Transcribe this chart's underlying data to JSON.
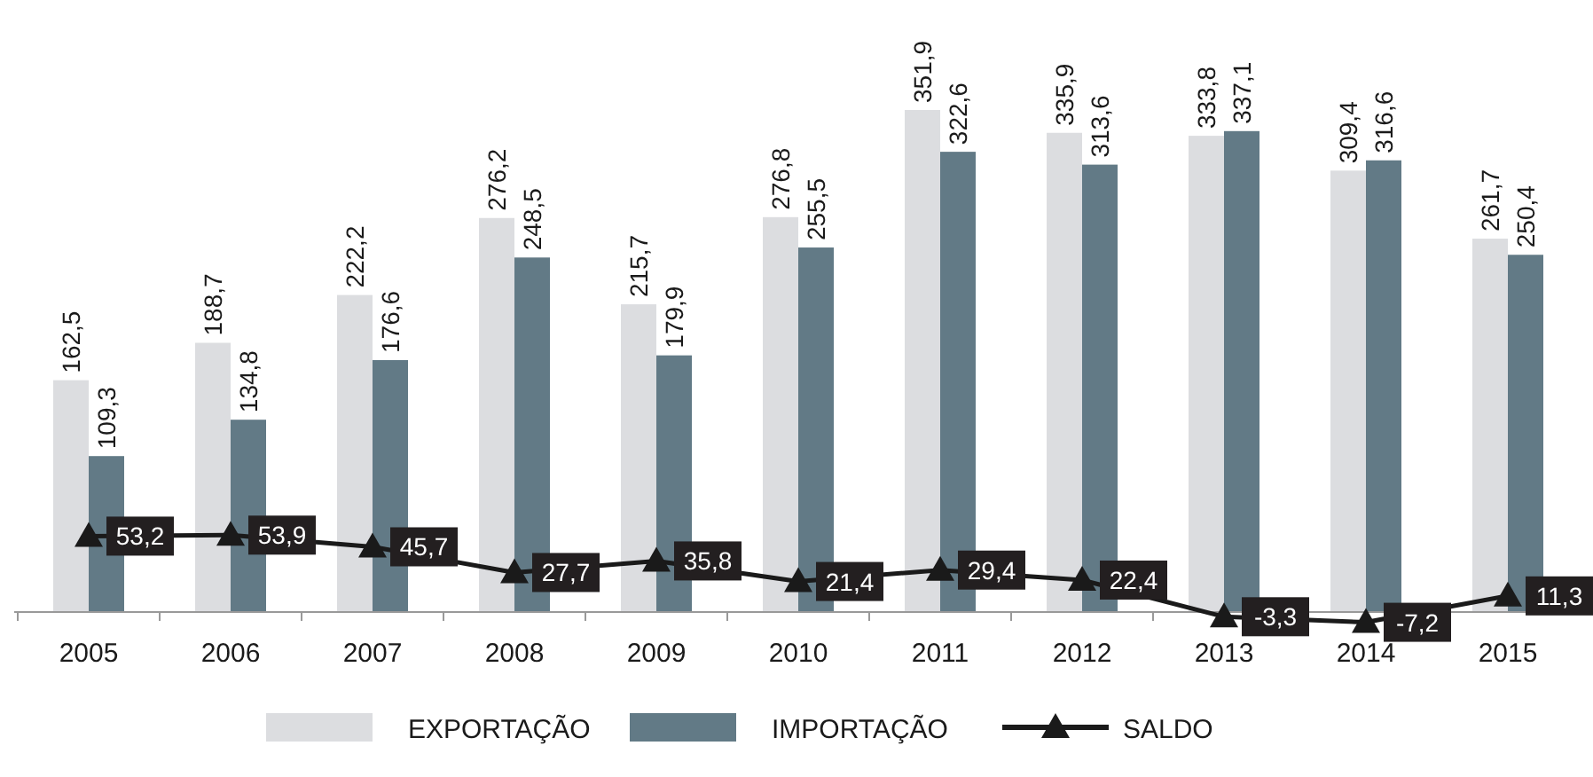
{
  "chart_data": {
    "type": "bar",
    "categories": [
      "2005",
      "2006",
      "2007",
      "2008",
      "2009",
      "2010",
      "2011",
      "2012",
      "2013",
      "2014",
      "2015"
    ],
    "series": [
      {
        "name": "EXPORTAÇÃO",
        "color": "#dcdde0",
        "values": [
          162.5,
          188.7,
          222.2,
          276.2,
          215.7,
          276.8,
          351.9,
          335.9,
          333.8,
          309.4,
          261.7
        ],
        "value_labels": [
          "162,5",
          "188,7",
          "222,2",
          "276,2",
          "215,7",
          "276,8",
          "351,9",
          "335,9",
          "333,8",
          "309,4",
          "261,7"
        ]
      },
      {
        "name": "IMPORTAÇÃO",
        "color": "#627a86",
        "values": [
          109.3,
          134.8,
          176.6,
          248.5,
          179.9,
          255.5,
          322.6,
          313.6,
          337.1,
          316.6,
          250.4
        ],
        "value_labels": [
          "109,3",
          "134,8",
          "176,6",
          "248,5",
          "179,9",
          "255,5",
          "322,6",
          "313,6",
          "337,1",
          "316,6",
          "250,4"
        ]
      },
      {
        "name": "SALDO",
        "type": "line",
        "color": "#1a1a1a",
        "marker": "triangle",
        "values": [
          53.2,
          53.9,
          45.7,
          27.7,
          35.8,
          21.4,
          29.4,
          22.4,
          -3.3,
          -7.2,
          11.3
        ],
        "value_labels": [
          "53,2",
          "53,9",
          "45,7",
          "27,7",
          "35,8",
          "21,4",
          "29,4",
          "22,4",
          "-3,3",
          "-7,2",
          "11,3"
        ]
      }
    ],
    "legend": "bottom"
  }
}
